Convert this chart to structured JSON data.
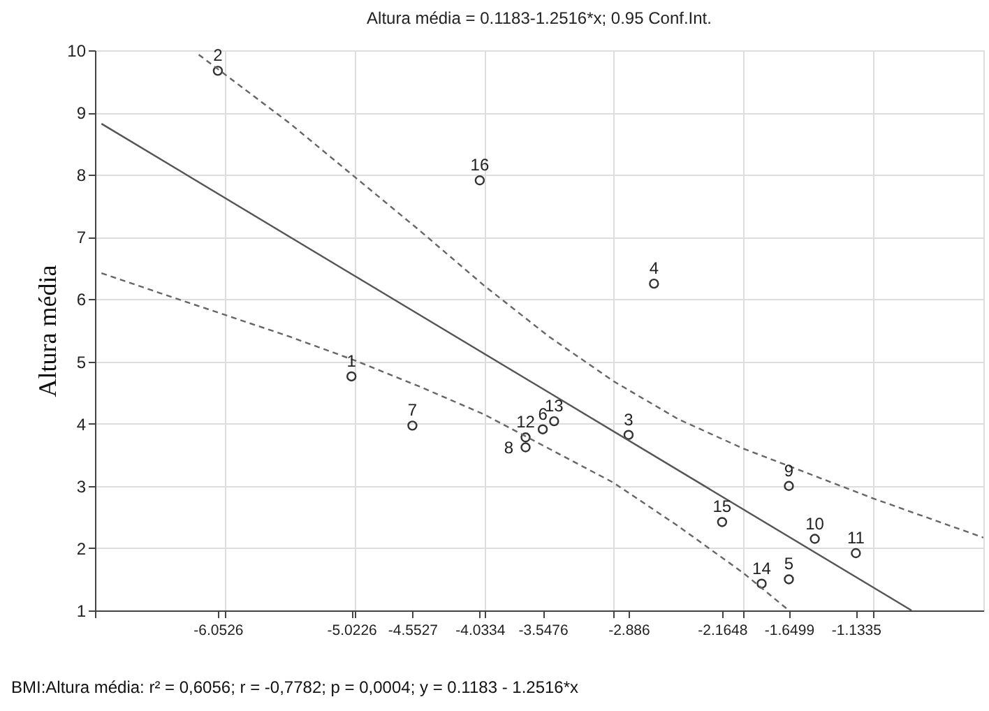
{
  "chart_data": {
    "type": "scatter",
    "title": "Altura média = 0.1183-1.2516*x; 0.95 Conf.Int.",
    "ylabel": "Altura média",
    "series": [
      {
        "marker": "circle",
        "color": "#333333",
        "x": [
          -5.0226,
          -6.0526,
          -2.886,
          -2.69,
          -1.6499,
          -3.5476,
          -4.5527,
          -3.68,
          -1.6499,
          -1.45,
          -1.1335,
          -3.68,
          -3.46,
          -1.86,
          -2.1648,
          -4.0334
        ],
        "values": [
          4.76,
          9.67,
          3.82,
          6.25,
          1.5,
          3.91,
          3.97,
          3.62,
          3.0,
          2.15,
          1.92,
          3.78,
          4.04,
          1.43,
          2.42,
          7.91
        ]
      },
      {
        "type": "line",
        "marker": "none",
        "color": "#555555",
        "line_style": "solid",
        "x": [
          -6.95,
          -0.7044
        ],
        "values": [
          8.82,
          1.0
        ]
      },
      {
        "type": "line",
        "marker": "none",
        "color": "#666666",
        "line_style": "dashed",
        "x": [
          -6.2,
          -5.5,
          -5,
          -4.5,
          -4,
          -3.5,
          -3,
          -2.5,
          -2,
          -1.5,
          -1,
          -0.15
        ],
        "values": [
          9.93,
          8.83,
          7.97,
          7.11,
          6.22,
          5.4,
          4.68,
          4.07,
          3.6,
          3.2,
          2.8,
          2.17
        ]
      },
      {
        "type": "line",
        "marker": "none",
        "color": "#666666",
        "line_style": "dashed",
        "x": [
          -6.95,
          -6.5,
          -6,
          -5.5,
          -5,
          -4.5,
          -4,
          -3.5,
          -3,
          -2.5,
          -2,
          -1.65
        ],
        "values": [
          6.42,
          6.1,
          5.75,
          5.4,
          5.02,
          4.6,
          4.15,
          3.6,
          3.05,
          2.35,
          1.6,
          1.0
        ]
      }
    ],
    "xlim": [
      -7,
      -0.15
    ],
    "xticks": [
      {
        "value": -7,
        "label": null
      },
      {
        "value": -6,
        "label": null
      },
      {
        "value": -5,
        "label": null
      },
      {
        "value": -4,
        "label": null
      },
      {
        "value": -3,
        "label": null
      },
      {
        "value": -2,
        "label": null
      },
      {
        "value": -1,
        "label": null
      },
      -6.0526,
      -5.0226,
      -4.5527,
      -4.0334,
      -3.5476,
      -2.886,
      -2.1648,
      -1.6499,
      -1.1335
    ],
    "ylim": [
      1,
      10
    ],
    "yticks": [
      1,
      2,
      3,
      4,
      5,
      6,
      7,
      8,
      9,
      10
    ],
    "grid": true,
    "annotations": [
      {
        "text": "1",
        "x": -5.0226,
        "y": 4.76
      },
      {
        "text": "2",
        "x": -6.0526,
        "y": 9.67
      },
      {
        "text": "3",
        "x": -2.886,
        "y": 3.82
      },
      {
        "text": "4",
        "x": -2.69,
        "y": 6.25
      },
      {
        "text": "5",
        "x": -1.6499,
        "y": 1.5
      },
      {
        "text": "6",
        "x": -3.5476,
        "y": 3.91
      },
      {
        "text": "7",
        "x": -4.5527,
        "y": 3.97
      },
      {
        "text": "8",
        "x": -3.68,
        "y": 3.62
      },
      {
        "text": "9",
        "x": -1.6499,
        "y": 3.0
      },
      {
        "text": "10",
        "x": -1.45,
        "y": 2.15
      },
      {
        "text": "11",
        "x": -1.1335,
        "y": 1.92
      },
      {
        "text": "12",
        "x": -3.68,
        "y": 3.78
      },
      {
        "text": "13",
        "x": -3.46,
        "y": 4.04
      },
      {
        "text": "14",
        "x": -1.86,
        "y": 1.43
      },
      {
        "text": "15",
        "x": -2.1648,
        "y": 2.42
      },
      {
        "text": "16",
        "x": -4.0334,
        "y": 7.91
      },
      "BMI:Altura média:  r² = 0,6056;  r = -0,7782; p = 0,0004;  y = 0.1183 - 1.2516*x"
    ]
  }
}
